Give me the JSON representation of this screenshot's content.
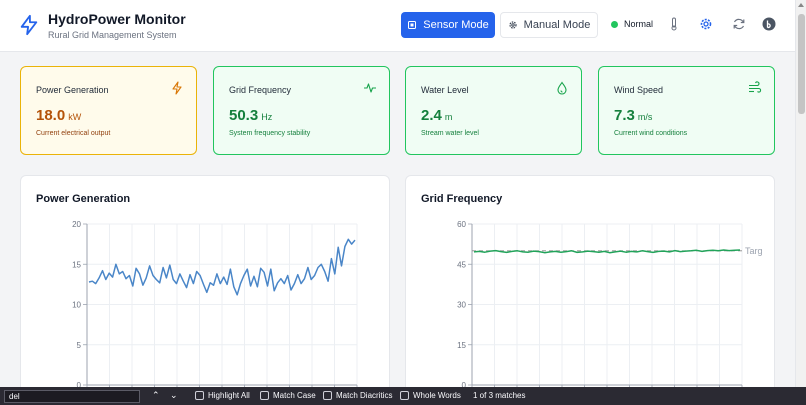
{
  "header": {
    "title": "HydroPower Monitor",
    "subtitle": "Rural Grid Management System",
    "sensor_mode_label": "Sensor Mode",
    "manual_mode_label": "Manual Mode",
    "status_label": "Normal",
    "icons": [
      "bolt-logo-icon",
      "thermometer-icon",
      "gear-icon",
      "refresh-icon",
      "user-avatar-icon"
    ],
    "colors": {
      "primary": "#2563eb",
      "status_ok": "#22c55e"
    }
  },
  "cards": [
    {
      "title": "Power Generation",
      "value": "18.0",
      "unit": "kW",
      "desc": "Current electrical output",
      "icon": "bolt-icon",
      "state": "warning"
    },
    {
      "title": "Grid Frequency",
      "value": "50.3",
      "unit": "Hz",
      "desc": "System frequency stability",
      "icon": "pulse-icon",
      "state": "ok"
    },
    {
      "title": "Water Level",
      "value": "2.4",
      "unit": "m",
      "desc": "Stream water level",
      "icon": "droplet-icon",
      "state": "ok"
    },
    {
      "title": "Wind Speed",
      "value": "7.3",
      "unit": "m/s",
      "desc": "Current wind conditions",
      "icon": "wind-icon",
      "state": "ok"
    }
  ],
  "chart_data": [
    {
      "type": "line",
      "title": "Power Generation",
      "ylim": [
        0,
        20
      ],
      "yticks": [
        0,
        5,
        10,
        15,
        20
      ],
      "grid": true,
      "color": "#4a86c8",
      "series": [
        {
          "values": [
            12.8,
            12.9,
            12.6,
            13.3,
            14.2,
            13.1,
            13.9,
            13.4,
            15.0,
            13.8,
            14.1,
            13.2,
            13.6,
            12.3,
            14.5,
            13.8,
            12.4,
            13.3,
            14.8,
            13.6,
            13.1,
            12.7,
            14.6,
            13.3,
            14.9,
            13.1,
            12.6,
            13.8,
            12.9,
            12.1,
            13.7,
            12.6,
            14.1,
            13.6,
            12.5,
            11.5,
            12.7,
            12.4,
            13.8,
            12.6,
            13.4,
            12.5,
            14.4,
            12.2,
            11.2,
            12.6,
            13.6,
            14.4,
            12.3,
            13.5,
            12.2,
            14.5,
            14.0,
            12.3,
            14.4,
            11.7,
            12.7,
            13.2,
            12.6,
            13.6,
            11.8,
            12.6,
            13.7,
            12.6,
            13.2,
            14.6,
            13.1,
            13.6,
            14.6,
            15.0,
            14.1,
            12.9,
            15.7,
            13.8,
            17.1,
            14.8,
            17.2,
            18.1,
            17.5,
            18.0
          ]
        }
      ]
    },
    {
      "type": "line",
      "title": "Grid Frequency",
      "ylim": [
        0,
        60
      ],
      "yticks": [
        0,
        15,
        30,
        45,
        60
      ],
      "grid": true,
      "color": "#22a35a",
      "target_label": "Targ",
      "target_value": 50,
      "series": [
        {
          "values": [
            49.6,
            49.8,
            49.5,
            49.9,
            50.1,
            49.7,
            49.4,
            49.8,
            50.0,
            49.6,
            49.5,
            49.9,
            49.7,
            49.3,
            49.6,
            49.8,
            49.5,
            49.7,
            50.0,
            49.4,
            49.6,
            49.9,
            49.7,
            49.5,
            49.8,
            49.3,
            49.6,
            49.9,
            49.5,
            49.8,
            49.6,
            50.0,
            49.7,
            49.4,
            49.8,
            49.9,
            49.6,
            50.1,
            49.7,
            49.9,
            50.0,
            50.2,
            49.8,
            50.1,
            50.2,
            50.0,
            50.3,
            50.1,
            50.2,
            50.3
          ]
        }
      ]
    }
  ],
  "findbar": {
    "query": "del",
    "highlight_all_label": "Highlight All",
    "match_case_label": "Match Case",
    "match_diacritics_label": "Match Diacritics",
    "whole_words_label": "Whole Words",
    "result_label": "1 of 3 matches"
  }
}
